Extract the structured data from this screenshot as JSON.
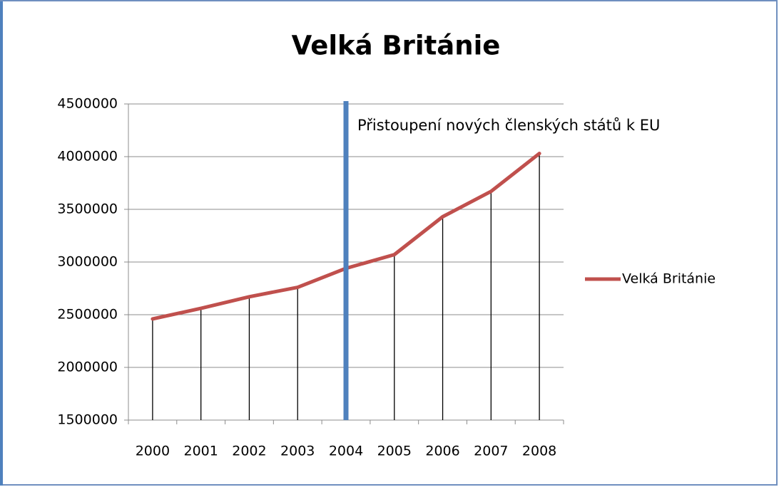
{
  "chart_data": {
    "type": "line",
    "title": "Velká Británie",
    "categories": [
      "2000",
      "2001",
      "2002",
      "2003",
      "2004",
      "2005",
      "2006",
      "2007",
      "2008"
    ],
    "series": [
      {
        "name": "Velká Británie",
        "color": "#c0504d",
        "values": [
          2460000,
          2560000,
          2670000,
          2760000,
          2940000,
          3070000,
          3430000,
          3670000,
          4030000
        ]
      }
    ],
    "ylim": [
      1500000,
      4500000
    ],
    "yticks": [
      1500000,
      2000000,
      2500000,
      3000000,
      3500000,
      4000000,
      4500000
    ],
    "grid": true,
    "drop_lines": true,
    "legend": "right",
    "annotation": {
      "text": "Přistoupení nových členských států k EU",
      "category": "2004",
      "color": "#4f81bd"
    }
  }
}
